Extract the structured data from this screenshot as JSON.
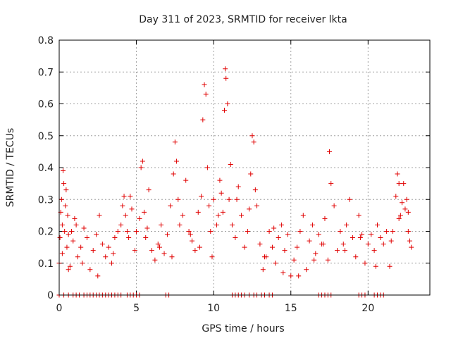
{
  "chart_data": {
    "type": "scatter",
    "title": "Day 311 of 2023, SRMTID for receiver lkta",
    "xlabel": "GPS time / hours",
    "ylabel": "SRMTID / TECUs",
    "xlim": [
      0,
      24
    ],
    "ylim": [
      0,
      0.8
    ],
    "xticks": [
      0,
      5,
      10,
      15,
      20
    ],
    "xtick_labels": [
      "0",
      "5",
      "10",
      "15",
      "20"
    ],
    "yticks": [
      0,
      0.1,
      0.2,
      0.3,
      0.4,
      0.5,
      0.6,
      0.7,
      0.8
    ],
    "ytick_labels": [
      "0",
      "0.1",
      "0.2",
      "0.3",
      "0.4",
      "0.5",
      "0.6",
      "0.7",
      "0.8"
    ],
    "grid": true,
    "marker": "+",
    "color": "#e00000",
    "series": [
      {
        "name": "SRMTID",
        "x": [
          0.0,
          0.05,
          0.1,
          0.15,
          0.2,
          0.25,
          0.3,
          0.35,
          0.4,
          0.45,
          0.5,
          0.55,
          0.6,
          0.7,
          0.8,
          0.9,
          1.0,
          1.2,
          1.4,
          1.6,
          1.8,
          2.0,
          2.2,
          2.4,
          2.6,
          2.8,
          3.0,
          3.2,
          3.4,
          3.6,
          3.8,
          4.0,
          4.1,
          4.2,
          4.3,
          4.4,
          4.5,
          4.7,
          4.9,
          5.0,
          5.2,
          5.3,
          5.4,
          5.5,
          5.6,
          5.8,
          6.0,
          6.2,
          6.4,
          6.6,
          6.8,
          7.0,
          7.2,
          7.4,
          7.5,
          7.6,
          7.7,
          7.8,
          8.0,
          8.2,
          8.4,
          8.6,
          8.8,
          9.0,
          9.2,
          9.3,
          9.4,
          9.5,
          9.6,
          9.7,
          9.8,
          10.0,
          10.2,
          10.4,
          10.5,
          10.6,
          10.7,
          10.75,
          10.8,
          10.9,
          11.0,
          11.2,
          11.4,
          11.6,
          11.8,
          12.0,
          12.2,
          12.4,
          12.5,
          12.6,
          12.7,
          12.8,
          13.0,
          13.2,
          13.4,
          13.6,
          13.8,
          14.0,
          14.2,
          14.4,
          14.6,
          14.8,
          15.0,
          15.2,
          15.4,
          15.6,
          15.8,
          16.0,
          16.2,
          16.4,
          16.6,
          16.8,
          17.0,
          17.2,
          17.4,
          17.5,
          17.6,
          17.8,
          18.0,
          18.2,
          18.4,
          18.6,
          18.8,
          19.0,
          19.2,
          19.4,
          19.6,
          19.8,
          20.0,
          20.2,
          20.4,
          20.6,
          20.8,
          21.0,
          21.2,
          21.4,
          21.6,
          21.8,
          21.9,
          22.0,
          22.1,
          22.2,
          22.3,
          22.4,
          22.5,
          22.6,
          22.7,
          22.8,
          0.2,
          0.6,
          1.1,
          1.5,
          2.5,
          3.5,
          4.6,
          5.7,
          6.5,
          7.3,
          8.5,
          9.1,
          9.9,
          10.3,
          11.1,
          11.5,
          12.3,
          13.3,
          13.9,
          14.5,
          15.5,
          16.5,
          17.1,
          18.5,
          19.5,
          20.5,
          21.5,
          22.0,
          22.6,
          0.0,
          0.3,
          0.6,
          0.9,
          1.1,
          1.3,
          1.6,
          1.8,
          2.0,
          2.2,
          2.4,
          2.6,
          2.8,
          3.0,
          3.2,
          3.4,
          3.6,
          3.8,
          4.0,
          4.4,
          4.6,
          4.8,
          5.0,
          5.2,
          6.9,
          7.1,
          11.2,
          11.4,
          11.6,
          11.8,
          12.0,
          12.3,
          12.6,
          12.8,
          13.1,
          13.3,
          13.6,
          13.8,
          16.8,
          17.0,
          17.2,
          17.4,
          17.6,
          19.4,
          19.6,
          19.8,
          20.4,
          20.6,
          20.8,
          21.0
        ],
        "y": [
          0.1,
          0.18,
          0.26,
          0.3,
          0.22,
          0.39,
          0.35,
          0.2,
          0.28,
          0.33,
          0.15,
          0.25,
          0.19,
          0.09,
          0.2,
          0.17,
          0.24,
          0.12,
          0.15,
          0.21,
          0.18,
          0.08,
          0.14,
          0.19,
          0.25,
          0.16,
          0.12,
          0.15,
          0.1,
          0.18,
          0.2,
          0.22,
          0.28,
          0.31,
          0.25,
          0.2,
          0.18,
          0.27,
          0.14,
          0.2,
          0.24,
          0.4,
          0.42,
          0.26,
          0.18,
          0.33,
          0.14,
          0.11,
          0.16,
          0.22,
          0.13,
          0.19,
          0.28,
          0.38,
          0.48,
          0.42,
          0.3,
          0.22,
          0.25,
          0.36,
          0.2,
          0.17,
          0.14,
          0.26,
          0.31,
          0.55,
          0.66,
          0.63,
          0.4,
          0.28,
          0.2,
          0.3,
          0.22,
          0.36,
          0.32,
          0.26,
          0.58,
          0.71,
          0.68,
          0.6,
          0.3,
          0.22,
          0.18,
          0.34,
          0.25,
          0.15,
          0.2,
          0.38,
          0.5,
          0.48,
          0.33,
          0.28,
          0.16,
          0.08,
          0.12,
          0.2,
          0.15,
          0.1,
          0.18,
          0.22,
          0.14,
          0.19,
          0.06,
          0.11,
          0.15,
          0.2,
          0.25,
          0.08,
          0.17,
          0.22,
          0.13,
          0.19,
          0.16,
          0.24,
          0.11,
          0.45,
          0.35,
          0.28,
          0.14,
          0.2,
          0.16,
          0.22,
          0.3,
          0.18,
          0.12,
          0.25,
          0.19,
          0.1,
          0.16,
          0.19,
          0.14,
          0.22,
          0.18,
          0.16,
          0.2,
          0.09,
          0.2,
          0.31,
          0.38,
          0.35,
          0.25,
          0.29,
          0.35,
          0.27,
          0.3,
          0.2,
          0.17,
          0.15,
          0.13,
          0.08,
          0.22,
          0.1,
          0.06,
          0.13,
          0.31,
          0.21,
          0.15,
          0.12,
          0.19,
          0.15,
          0.12,
          0.25,
          0.41,
          0.3,
          0.27,
          0.12,
          0.21,
          0.07,
          0.06,
          0.11,
          0.16,
          0.14,
          0.18,
          0.09,
          0.17,
          0.24,
          0.26,
          0,
          0,
          0,
          0,
          0,
          0,
          0,
          0,
          0,
          0,
          0,
          0,
          0,
          0,
          0,
          0,
          0,
          0,
          0,
          0,
          0,
          0,
          0,
          0,
          0,
          0,
          0,
          0,
          0,
          0,
          0,
          0,
          0,
          0,
          0,
          0,
          0,
          0,
          0,
          0,
          0,
          0,
          0,
          0,
          0,
          0,
          0,
          0,
          0,
          0
        ]
      }
    ]
  }
}
